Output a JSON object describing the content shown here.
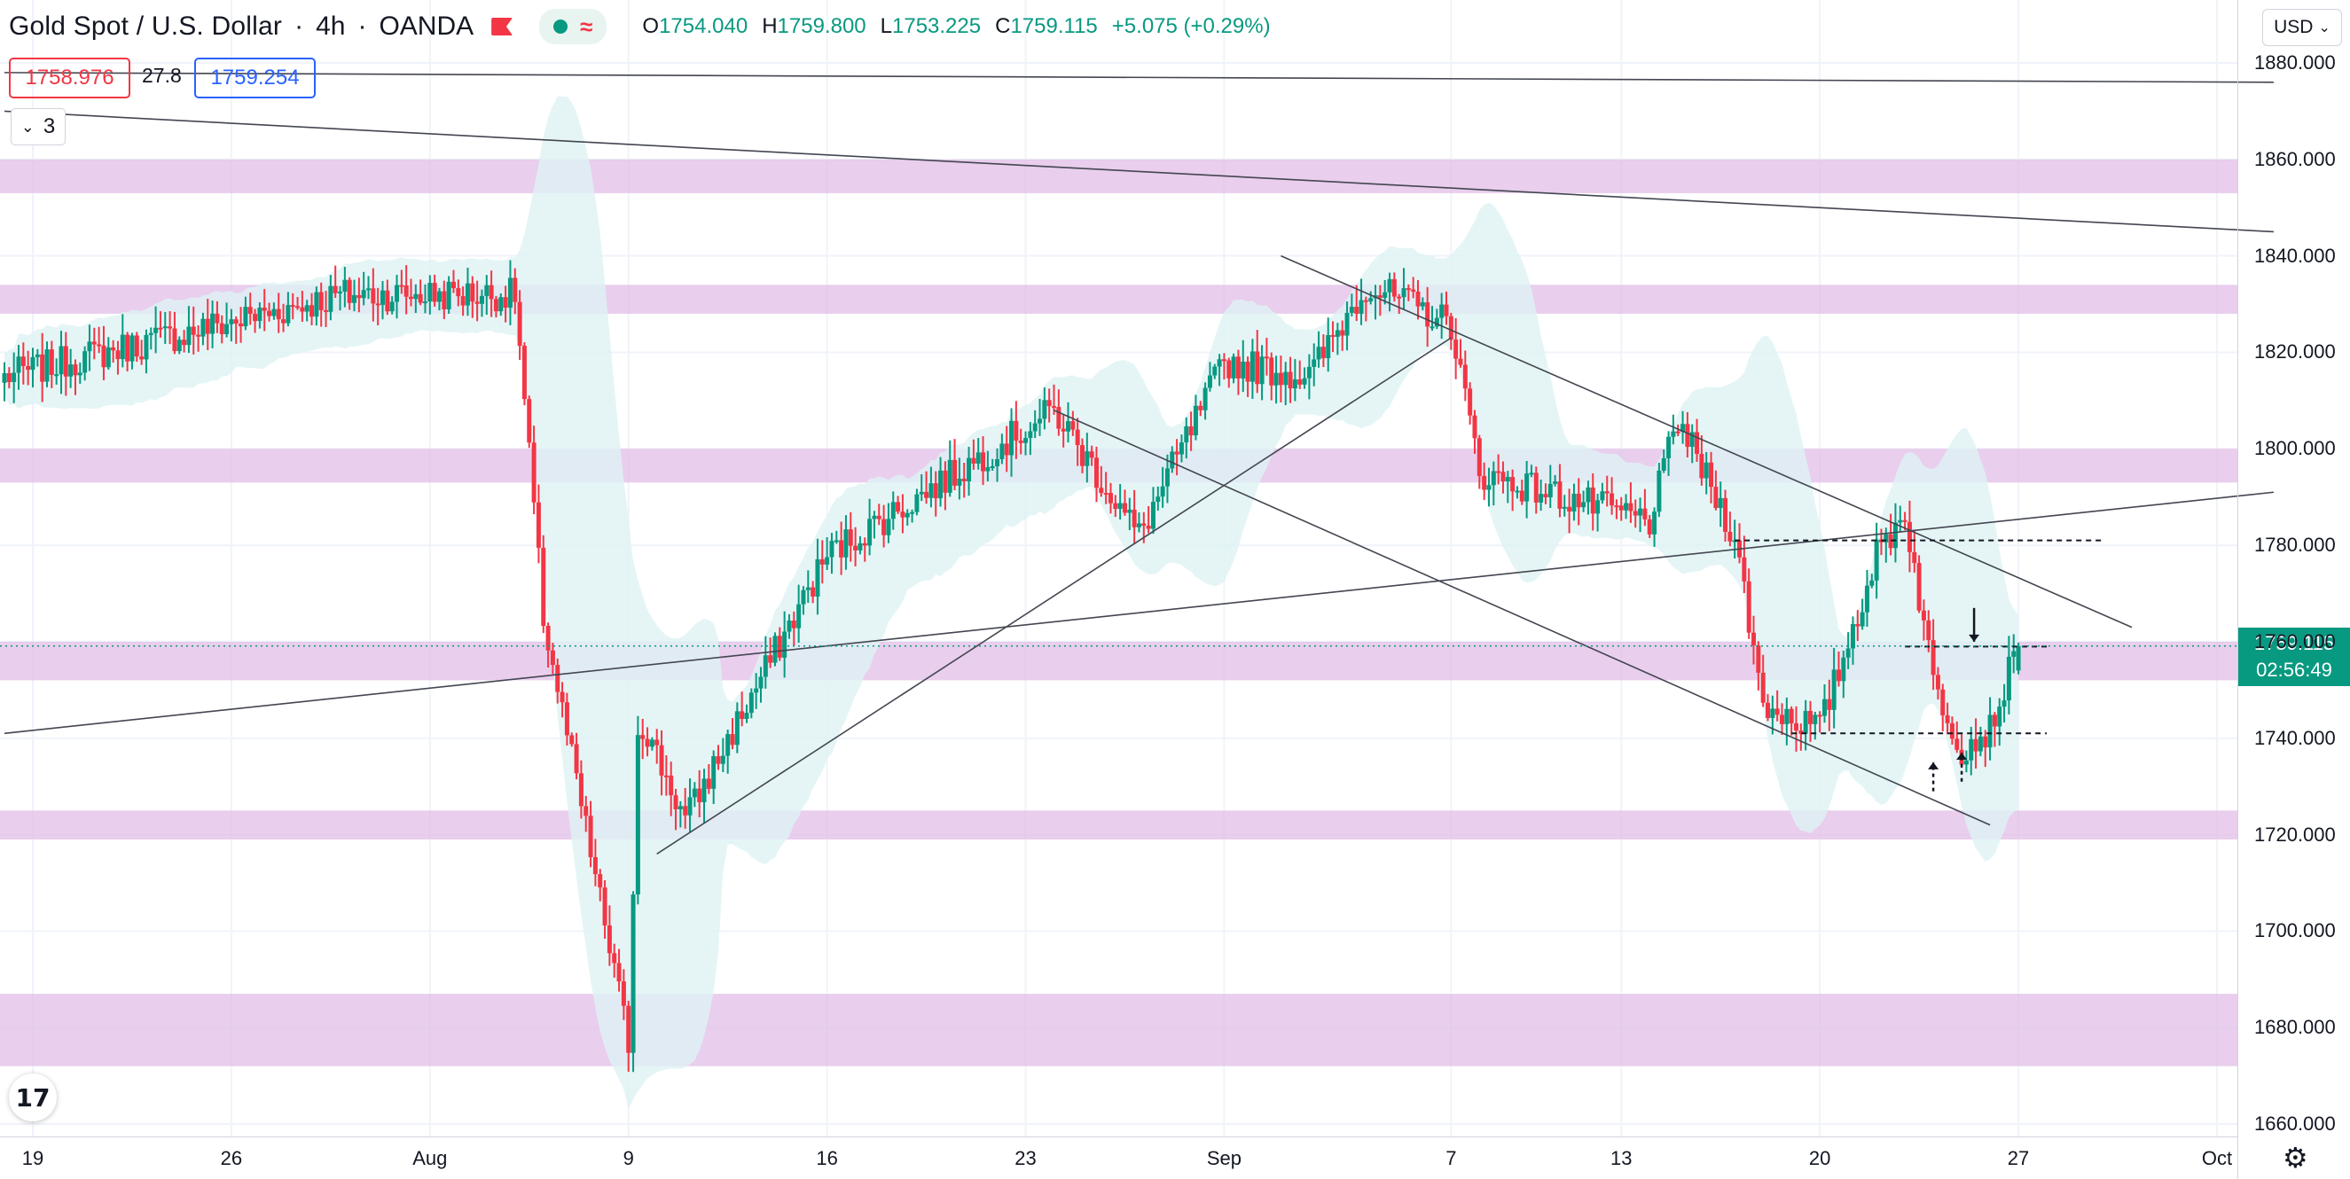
{
  "header": {
    "symbol_title": "Gold Spot / U.S. Dollar",
    "interval": "4h",
    "broker": "OANDA",
    "icons": [
      "alarm-icon",
      "market-open-dot-icon",
      "wave-icon"
    ],
    "ohlc": {
      "o_label": "O",
      "o_value": "1754.040",
      "h_label": "H",
      "h_value": "1759.800",
      "l_label": "L",
      "l_value": "1753.225",
      "c_label": "C",
      "c_value": "1759.115",
      "change": "+5.075 (+0.29%)"
    },
    "sell_price": "1758.976",
    "spread": "27.8",
    "buy_price": "1759.254",
    "indicators_count": "3"
  },
  "toolbar": {
    "currency": "USD"
  },
  "price_tag": {
    "price": "1759.115",
    "countdown": "02:56:49"
  },
  "logo": {
    "text": "17"
  },
  "colors": {
    "up": "#089981",
    "down": "#f23645",
    "zone": "#e1bee7",
    "bands": "#dff2f4",
    "trendline": "#434651",
    "text": "#131722",
    "grid": "#f0f3fa"
  },
  "chart_data": {
    "type": "candlestick",
    "title": "Gold Spot / U.S. Dollar",
    "interval": "4h",
    "y_axis": {
      "ticks": [
        "1880.000",
        "1860.000",
        "1840.000",
        "1820.000",
        "1800.000",
        "1780.000",
        "1760.000",
        "1740.000",
        "1720.000",
        "1700.000",
        "1680.000",
        "1660.000"
      ],
      "range": [
        1656,
        1882
      ]
    },
    "x_axis": {
      "ticks": [
        "19",
        "26",
        "Aug",
        "9",
        "16",
        "23",
        "Sep",
        "7",
        "13",
        "20",
        "27",
        "Oct"
      ],
      "range": [
        "2021-07-18",
        "2021-10-06"
      ]
    },
    "grid": true,
    "zones": [
      [
        1853,
        1860
      ],
      [
        1828,
        1834
      ],
      [
        1793,
        1800
      ],
      [
        1752,
        1760
      ],
      [
        1719,
        1725
      ],
      [
        1672,
        1687
      ]
    ],
    "key_points": [
      {
        "date": "2021-07-18",
        "price": 1815
      },
      {
        "date": "2021-07-30",
        "price": 1832
      },
      {
        "date": "2021-08-05",
        "price": 1832
      },
      {
        "date": "2021-08-06",
        "price": 1765
      },
      {
        "date": "2021-08-09",
        "price": 1677
      },
      {
        "date": "2021-08-09",
        "price": 1745
      },
      {
        "date": "2021-08-11",
        "price": 1723
      },
      {
        "date": "2021-08-16",
        "price": 1778
      },
      {
        "date": "2021-08-24",
        "price": 1808
      },
      {
        "date": "2021-08-27",
        "price": 1782
      },
      {
        "date": "2021-08-30",
        "price": 1818
      },
      {
        "date": "2021-09-02",
        "price": 1815
      },
      {
        "date": "2021-09-04",
        "price": 1834
      },
      {
        "date": "2021-09-07",
        "price": 1826
      },
      {
        "date": "2021-09-08",
        "price": 1795
      },
      {
        "date": "2021-09-14",
        "price": 1785
      },
      {
        "date": "2021-09-15",
        "price": 1806
      },
      {
        "date": "2021-09-17",
        "price": 1782
      },
      {
        "date": "2021-09-18",
        "price": 1747
      },
      {
        "date": "2021-09-20",
        "price": 1742
      },
      {
        "date": "2021-09-22",
        "price": 1778
      },
      {
        "date": "2021-09-23",
        "price": 1787
      },
      {
        "date": "2021-09-24",
        "price": 1752
      },
      {
        "date": "2021-09-25",
        "price": 1738
      },
      {
        "date": "2021-09-26",
        "price": 1742
      },
      {
        "date": "2021-09-27",
        "price": 1759.115
      }
    ],
    "last_candle": {
      "open": 1754.04,
      "high": 1759.8,
      "low": 1753.225,
      "close": 1759.115
    },
    "drawings": [
      {
        "type": "trendline",
        "from": [
          "2021-07-18",
          1878
        ],
        "to": [
          "2021-10-06",
          1876
        ]
      },
      {
        "type": "trendline",
        "from": [
          "2021-07-18",
          1870
        ],
        "to": [
          "2021-10-06",
          1845
        ]
      },
      {
        "type": "trendline",
        "from": [
          "2021-07-18",
          1741
        ],
        "to": [
          "2021-10-06",
          1791
        ]
      },
      {
        "type": "trendline",
        "from": [
          "2021-08-10",
          1716
        ],
        "to": [
          "2021-09-07",
          1823
        ]
      },
      {
        "type": "trendline",
        "from": [
          "2021-08-24",
          1808
        ],
        "to": [
          "2021-09-26",
          1722
        ]
      },
      {
        "type": "trendline",
        "from": [
          "2021-09-01",
          1840
        ],
        "to": [
          "2021-10-01",
          1763
        ]
      },
      {
        "type": "hline-dashed",
        "from": "2021-09-17",
        "to": "2021-09-30",
        "price": 1781
      },
      {
        "type": "hline-dashed",
        "from": "2021-09-23",
        "to": "2021-09-28",
        "price": 1759
      },
      {
        "type": "hline-dashed",
        "from": "2021-09-19",
        "to": "2021-09-28",
        "price": 1741
      },
      {
        "type": "arrow-down",
        "date": "2021-09-25",
        "from": 1767,
        "to": 1760
      },
      {
        "type": "arrow-up-dashed",
        "date": "2021-09-24",
        "from": 1729,
        "to": 1735
      },
      {
        "type": "arrow-up-dashed",
        "date": "2021-09-25",
        "from": 1731,
        "to": 1737
      }
    ]
  }
}
